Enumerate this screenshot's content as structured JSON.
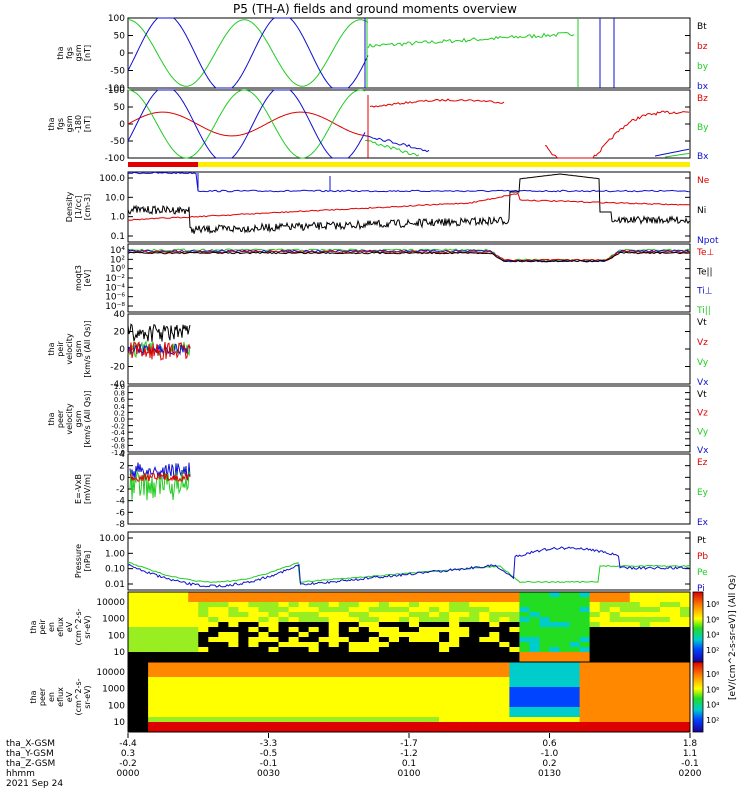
{
  "title": "P5 (TH-A) fields and ground moments overview",
  "colors": {
    "black": "#000000",
    "red": "#e00000",
    "green": "#22cc22",
    "blue": "#1010d0",
    "yellow": "#ffee00"
  },
  "chart_data": [
    {
      "type": "line",
      "ylabel": "tha\nfgs\ngsm\n[nT]",
      "yticks": [
        "100",
        "50",
        "0",
        "-50",
        "-100"
      ],
      "ylim": [
        -100,
        100
      ],
      "legend": [
        {
          "text": "Bt",
          "color": "black"
        },
        {
          "text": "bz",
          "color": "red"
        },
        {
          "text": "by",
          "color": "green"
        },
        {
          "text": "bx",
          "color": "blue"
        }
      ]
    },
    {
      "type": "line",
      "ylabel": "tha\nfgs\ngsm\n-180\n[nT]",
      "yticks": [
        "100",
        "50",
        "0",
        "-50",
        "-100"
      ],
      "ylim": [
        -120,
        100
      ],
      "legend": [
        {
          "text": "Bz",
          "color": "red"
        },
        {
          "text": "By",
          "color": "green"
        },
        {
          "text": "Bx",
          "color": "blue"
        }
      ]
    },
    {
      "type": "line",
      "ylabel": "Density\n[1/cc]\n[cm-3]",
      "yticks": [
        "100.0",
        "10.0",
        "1.0",
        "0.1"
      ],
      "log": true,
      "legend": [
        {
          "text": "Ne",
          "color": "red"
        },
        {
          "text": "Ni",
          "color": "black"
        },
        {
          "text": "Npot",
          "color": "blue"
        }
      ]
    },
    {
      "type": "line",
      "ylabel": "moqt3\n[eV]",
      "yticks": [
        "10⁴",
        "10²",
        "10⁰",
        "10⁻²",
        "10⁻⁴",
        "10⁻⁶",
        "10⁻⁸"
      ],
      "log": true,
      "legend": [
        {
          "text": "Te⊥",
          "color": "red"
        },
        {
          "text": "Te||",
          "color": "black"
        },
        {
          "text": "Ti⊥",
          "color": "blue"
        },
        {
          "text": "Ti||",
          "color": "green"
        }
      ]
    },
    {
      "type": "line",
      "ylabel": "tha\npeir\nvelocity\ngsm\n[km/s (All Qs)]",
      "yticks": [
        "40",
        "20",
        "0",
        "-20",
        "-40"
      ],
      "ylim": [
        -40,
        40
      ],
      "legend": [
        {
          "text": "Vt",
          "color": "black"
        },
        {
          "text": "Vz",
          "color": "red"
        },
        {
          "text": "Vy",
          "color": "green"
        },
        {
          "text": "Vx",
          "color": "blue"
        }
      ]
    },
    {
      "type": "line",
      "ylabel": "tha\npeer\nvelocity\ngsm\n[km/s (All Qs)]",
      "yticks": [
        "1.0",
        "0.8",
        "0.6",
        "0.4",
        "0.2",
        "0.0",
        "-0.2",
        "-0.4",
        "-0.6",
        "-0.8",
        "-1.0"
      ],
      "ylim": [
        -1,
        1
      ],
      "legend": [
        {
          "text": "Vt",
          "color": "black"
        },
        {
          "text": "Vz",
          "color": "red"
        },
        {
          "text": "Vy",
          "color": "green"
        },
        {
          "text": "Vx",
          "color": "blue"
        }
      ]
    },
    {
      "type": "line",
      "ylabel": "E=-VxB\n[mV/m]",
      "yticks": [
        "4",
        "2",
        "0",
        "-2",
        "-4",
        "-6",
        "-8"
      ],
      "ylim": [
        -8,
        4
      ],
      "legend": [
        {
          "text": "Ez",
          "color": "red"
        },
        {
          "text": "Ey",
          "color": "green"
        },
        {
          "text": "Ex",
          "color": "blue"
        }
      ]
    },
    {
      "type": "line",
      "ylabel": "Pressure\n[nPa]",
      "yticks": [
        "10.00",
        "1.00",
        "0.10",
        "0.01"
      ],
      "log": true,
      "legend": [
        {
          "text": "Pt",
          "color": "black"
        },
        {
          "text": "Pb",
          "color": "red"
        },
        {
          "text": "Pe",
          "color": "green"
        },
        {
          "text": "Pi",
          "color": "blue"
        }
      ]
    },
    {
      "type": "heatmap",
      "ylabel": "tha\npeir\nen\neflux\neV\n(cm^2-s-\nsr-eV)",
      "yticks": [
        "10000",
        "1000",
        "100",
        "10"
      ],
      "colorbar_ticks": [
        "10⁸",
        "10⁶",
        "10⁴",
        "10²"
      ],
      "colorbar_label": "[eV/(cm^2-s-sr-eV)] (All Qs)"
    },
    {
      "type": "heatmap",
      "ylabel": "tha\npeer\nen\neflux\neV\n(cm^2-s-\nsr-eV)",
      "yticks": [
        "10000",
        "1000",
        "100",
        "10"
      ],
      "colorbar_ticks": [
        "10⁸",
        "10⁶",
        "10⁴",
        "10²"
      ],
      "colorbar_label": "[eV/(cm^2-s-sr-eV)]"
    }
  ],
  "xaxis": {
    "row_labels": [
      "tha_X-GSM",
      "tha_Y-GSM",
      "tha_Z-GSM",
      "hhmm",
      "2021 Sep 24"
    ],
    "ticks": [
      {
        "vals": [
          "-4.4",
          "0.3",
          "-0.2",
          "0000"
        ]
      },
      {
        "vals": [
          "-3.3",
          "-0.5",
          "-0.1",
          "0030"
        ]
      },
      {
        "vals": [
          "-1.7",
          "-1.2",
          "0.1",
          "0100"
        ]
      },
      {
        "vals": [
          "0.6",
          "-1.0",
          "0.2",
          "0130"
        ]
      },
      {
        "vals": [
          "1.8",
          "1.1",
          "-0.1",
          "0200"
        ]
      }
    ]
  }
}
